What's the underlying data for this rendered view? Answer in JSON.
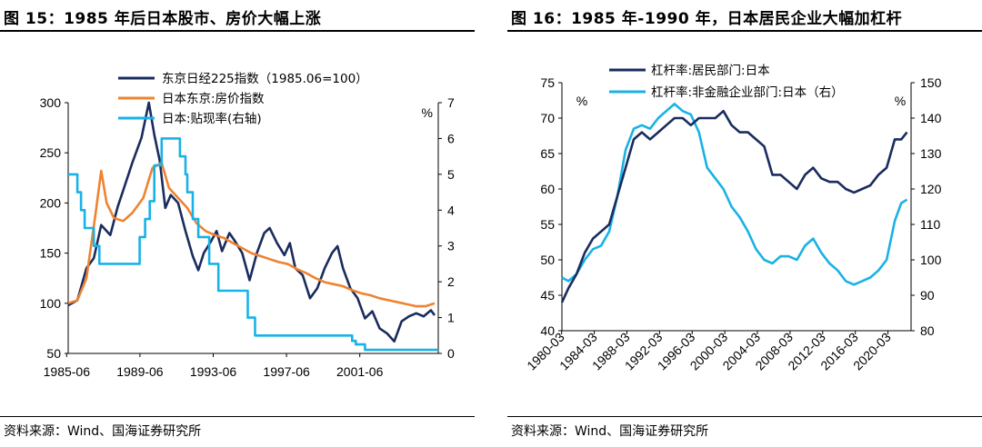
{
  "left": {
    "title": "图 15：1985 年后日本股市、房价大幅上涨",
    "source": "资料来源：Wind、国海证券研究所",
    "chart_data": {
      "type": "line",
      "title": "图 15：1985 年后日本股市、房价大幅上涨",
      "x_ticks": [
        "1985-06",
        "1989-06",
        "1993-06",
        "1997-06",
        "2001-06"
      ],
      "y_ticks": [
        "50",
        "100",
        "150",
        "200",
        "250",
        "300"
      ],
      "y2_ticks": [
        "0",
        "1",
        "2",
        "3",
        "4",
        "5",
        "6",
        "7"
      ],
      "y2_unit": "%",
      "ylim": [
        50,
        300
      ],
      "y2lim": [
        0,
        7
      ],
      "xlim": [
        1985.5,
        2005.7
      ],
      "series": [
        {
          "name": "东京日经225指数（1985.06=100）",
          "color": "#1a2c5e",
          "axis": "left",
          "points": [
            [
              1985.5,
              98
            ],
            [
              1986.0,
              103
            ],
            [
              1986.5,
              135
            ],
            [
              1986.9,
              145
            ],
            [
              1987.3,
              178
            ],
            [
              1987.8,
              168
            ],
            [
              1988.2,
              196
            ],
            [
              1988.6,
              218
            ],
            [
              1989.0,
              240
            ],
            [
              1989.5,
              265
            ],
            [
              1989.9,
              300
            ],
            [
              1990.2,
              268
            ],
            [
              1990.5,
              242
            ],
            [
              1990.8,
              195
            ],
            [
              1991.1,
              208
            ],
            [
              1991.5,
              200
            ],
            [
              1991.9,
              172
            ],
            [
              1992.3,
              147
            ],
            [
              1992.6,
              133
            ],
            [
              1992.9,
              150
            ],
            [
              1993.3,
              162
            ],
            [
              1993.6,
              172
            ],
            [
              1993.9,
              152
            ],
            [
              1994.3,
              170
            ],
            [
              1994.6,
              162
            ],
            [
              1995.0,
              150
            ],
            [
              1995.4,
              123
            ],
            [
              1995.8,
              150
            ],
            [
              1996.2,
              170
            ],
            [
              1996.5,
              175
            ],
            [
              1996.9,
              160
            ],
            [
              1997.3,
              148
            ],
            [
              1997.6,
              160
            ],
            [
              1997.9,
              135
            ],
            [
              1998.3,
              128
            ],
            [
              1998.7,
              105
            ],
            [
              1999.1,
              115
            ],
            [
              1999.5,
              135
            ],
            [
              1999.9,
              150
            ],
            [
              2000.2,
              157
            ],
            [
              2000.5,
              135
            ],
            [
              2000.9,
              115
            ],
            [
              2001.3,
              105
            ],
            [
              2001.7,
              85
            ],
            [
              2002.1,
              92
            ],
            [
              2002.5,
              75
            ],
            [
              2002.9,
              70
            ],
            [
              2003.3,
              62
            ],
            [
              2003.7,
              82
            ],
            [
              2004.1,
              87
            ],
            [
              2004.5,
              90
            ],
            [
              2004.9,
              87
            ],
            [
              2005.3,
              93
            ],
            [
              2005.5,
              88
            ]
          ]
        },
        {
          "name": "日本东京:房价指数",
          "color": "#ee8330",
          "axis": "left",
          "points": [
            [
              1985.5,
              100
            ],
            [
              1986.0,
              103
            ],
            [
              1986.5,
              125
            ],
            [
              1987.0,
              190
            ],
            [
              1987.3,
              232
            ],
            [
              1987.6,
              200
            ],
            [
              1988.0,
              185
            ],
            [
              1988.5,
              182
            ],
            [
              1989.0,
              190
            ],
            [
              1989.6,
              205
            ],
            [
              1990.1,
              235
            ],
            [
              1990.6,
              240
            ],
            [
              1991.0,
              215
            ],
            [
              1991.5,
              205
            ],
            [
              1992.0,
              195
            ],
            [
              1992.5,
              180
            ],
            [
              1993.0,
              172
            ],
            [
              1993.5,
              168
            ],
            [
              1994.0,
              165
            ],
            [
              1994.5,
              160
            ],
            [
              1995.0,
              155
            ],
            [
              1995.5,
              150
            ],
            [
              1996.0,
              147
            ],
            [
              1996.5,
              144
            ],
            [
              1997.0,
              141
            ],
            [
              1997.5,
              139
            ],
            [
              1998.0,
              134
            ],
            [
              1998.5,
              130
            ],
            [
              1999.0,
              125
            ],
            [
              1999.5,
              121
            ],
            [
              2000.0,
              119
            ],
            [
              2000.5,
              117
            ],
            [
              2001.0,
              113
            ],
            [
              2001.5,
              110
            ],
            [
              2002.0,
              108
            ],
            [
              2002.5,
              105
            ],
            [
              2003.0,
              103
            ],
            [
              2003.5,
              101
            ],
            [
              2004.0,
              99
            ],
            [
              2004.5,
              97
            ],
            [
              2005.0,
              97
            ],
            [
              2005.5,
              100
            ]
          ]
        },
        {
          "name": "日本:贴现率(右轴)",
          "color": "#19b2e6",
          "axis": "right",
          "step": true,
          "points": [
            [
              1985.5,
              5.0
            ],
            [
              1986.0,
              4.5
            ],
            [
              1986.2,
              4.0
            ],
            [
              1986.4,
              3.5
            ],
            [
              1986.9,
              3.0
            ],
            [
              1987.2,
              2.5
            ],
            [
              1989.4,
              3.25
            ],
            [
              1989.7,
              3.75
            ],
            [
              1989.95,
              4.25
            ],
            [
              1990.2,
              5.25
            ],
            [
              1990.6,
              6.0
            ],
            [
              1991.6,
              5.5
            ],
            [
              1991.9,
              5.0
            ],
            [
              1992.0,
              4.5
            ],
            [
              1992.3,
              3.75
            ],
            [
              1992.6,
              3.25
            ],
            [
              1993.2,
              2.5
            ],
            [
              1993.7,
              1.75
            ],
            [
              1995.3,
              1.0
            ],
            [
              1995.7,
              0.5
            ],
            [
              2001.0,
              0.35
            ],
            [
              2001.2,
              0.25
            ],
            [
              2001.7,
              0.1
            ],
            [
              2005.7,
              0.1
            ]
          ]
        }
      ]
    }
  },
  "right": {
    "title": "图 16：1985 年-1990 年，日本居民企业大幅加杠杆",
    "source": "资料来源：Wind、国海证券研究所",
    "chart_data": {
      "type": "line",
      "title": "图 16：1985 年-1990 年，日本居民企业大幅加杠杆",
      "x_ticks": [
        "1980-03",
        "1984-03",
        "1988-03",
        "1992-03",
        "1996-03",
        "2000-03",
        "2004-03",
        "2008-03",
        "2012-03",
        "2016-03",
        "2020-03"
      ],
      "y_ticks": [
        "40",
        "45",
        "50",
        "55",
        "60",
        "65",
        "70",
        "75"
      ],
      "y2_ticks": [
        "80",
        "90",
        "100",
        "110",
        "120",
        "130",
        "140",
        "150"
      ],
      "y_unit": "%",
      "y2_unit": "%",
      "ylim": [
        40,
        75
      ],
      "y2lim": [
        80,
        150
      ],
      "xlim": [
        1980.2,
        2023.0
      ],
      "series": [
        {
          "name": "杠杆率:居民部门:日本",
          "color": "#1a2c5e",
          "axis": "left",
          "points": [
            [
              1980.2,
              44
            ],
            [
              1981.0,
              46
            ],
            [
              1982.0,
              48
            ],
            [
              1983.0,
              51
            ],
            [
              1984.0,
              53
            ],
            [
              1985.0,
              54
            ],
            [
              1986.0,
              55
            ],
            [
              1987.0,
              59
            ],
            [
              1988.0,
              63
            ],
            [
              1989.0,
              67
            ],
            [
              1990.0,
              68
            ],
            [
              1991.0,
              67
            ],
            [
              1992.0,
              68
            ],
            [
              1993.0,
              69
            ],
            [
              1994.0,
              70
            ],
            [
              1995.0,
              70
            ],
            [
              1996.0,
              69
            ],
            [
              1997.0,
              70
            ],
            [
              1998.0,
              70
            ],
            [
              1999.0,
              70
            ],
            [
              2000.0,
              71
            ],
            [
              2001.0,
              69
            ],
            [
              2002.0,
              68
            ],
            [
              2003.0,
              68
            ],
            [
              2004.0,
              67
            ],
            [
              2005.0,
              66
            ],
            [
              2006.0,
              62
            ],
            [
              2007.0,
              62
            ],
            [
              2008.0,
              61
            ],
            [
              2009.0,
              60
            ],
            [
              2010.0,
              62
            ],
            [
              2011.0,
              63
            ],
            [
              2012.0,
              61.5
            ],
            [
              2013.0,
              61
            ],
            [
              2014.0,
              61
            ],
            [
              2015.0,
              60
            ],
            [
              2016.0,
              59.5
            ],
            [
              2017.0,
              60
            ],
            [
              2018.0,
              60.5
            ],
            [
              2019.0,
              62
            ],
            [
              2020.0,
              63
            ],
            [
              2021.0,
              67
            ],
            [
              2021.8,
              67
            ],
            [
              2022.5,
              68
            ]
          ]
        },
        {
          "name": "杠杆率:非金融企业部门:日本（右）",
          "color": "#19b2e6",
          "axis": "right",
          "points": [
            [
              1980.2,
              95
            ],
            [
              1981.0,
              94
            ],
            [
              1982.0,
              96
            ],
            [
              1983.0,
              100
            ],
            [
              1984.0,
              103
            ],
            [
              1985.0,
              104
            ],
            [
              1986.0,
              108
            ],
            [
              1987.0,
              118
            ],
            [
              1988.0,
              131
            ],
            [
              1989.0,
              137
            ],
            [
              1990.0,
              138
            ],
            [
              1991.0,
              137
            ],
            [
              1992.0,
              140
            ],
            [
              1993.0,
              142
            ],
            [
              1994.0,
              144
            ],
            [
              1995.0,
              142
            ],
            [
              1996.0,
              141
            ],
            [
              1997.0,
              136
            ],
            [
              1998.0,
              126
            ],
            [
              1999.0,
              123
            ],
            [
              2000.0,
              120
            ],
            [
              2001.0,
              115
            ],
            [
              2002.0,
              112
            ],
            [
              2003.0,
              108
            ],
            [
              2004.0,
              103
            ],
            [
              2005.0,
              100
            ],
            [
              2006.0,
              99
            ],
            [
              2007.0,
              101
            ],
            [
              2008.0,
              101
            ],
            [
              2009.0,
              100
            ],
            [
              2010.0,
              104
            ],
            [
              2011.0,
              106
            ],
            [
              2012.0,
              102
            ],
            [
              2013.0,
              99
            ],
            [
              2014.0,
              97
            ],
            [
              2015.0,
              94
            ],
            [
              2016.0,
              93
            ],
            [
              2017.0,
              94
            ],
            [
              2018.0,
              95
            ],
            [
              2019.0,
              97
            ],
            [
              2020.0,
              100
            ],
            [
              2021.0,
              111
            ],
            [
              2021.8,
              116
            ],
            [
              2022.5,
              117
            ]
          ]
        }
      ]
    }
  }
}
